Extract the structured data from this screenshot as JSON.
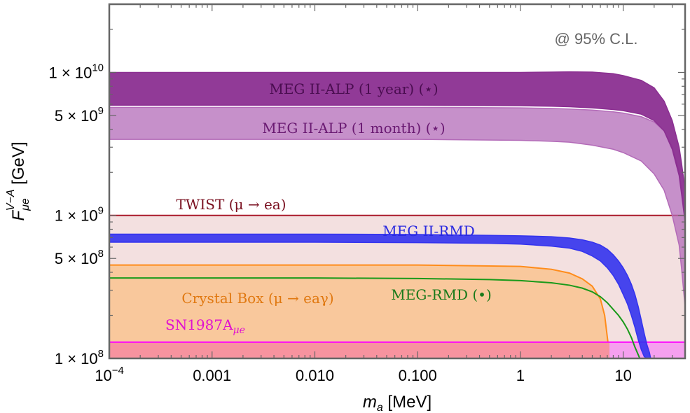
{
  "chart_data": {
    "type": "area",
    "x_scale": "log",
    "y_scale": "log",
    "xlim": [
      0.0001,
      40
    ],
    "ylim": [
      100000000,
      30000000000
    ],
    "xlabel": "m_a [MeV]",
    "ylabel": "F_μe^(V−A) [GeV]",
    "x_ticks": [
      {
        "value": 0.0001,
        "label": "10^-4"
      },
      {
        "value": 0.001,
        "label": "0.001"
      },
      {
        "value": 0.01,
        "label": "0.010"
      },
      {
        "value": 0.1,
        "label": "0.100"
      },
      {
        "value": 1,
        "label": "1"
      },
      {
        "value": 10,
        "label": "10"
      }
    ],
    "y_ticks": [
      {
        "value": 10000000000,
        "label": "1 × 10^10"
      },
      {
        "value": 5000000000,
        "label": "5 × 10^9"
      },
      {
        "value": 1000000000,
        "label": "1 × 10^9"
      },
      {
        "value": 500000000,
        "label": "5 × 10^8"
      },
      {
        "value": 100000000,
        "label": "1 × 10^8"
      }
    ],
    "annotation": "@ 95% C.L.",
    "series": [
      {
        "name": "SN1987A_μe",
        "kind": "excluded_region",
        "color": "#ff00ff",
        "x": [
          0.0001,
          40
        ],
        "y": [
          130000000,
          130000000
        ]
      },
      {
        "name": "TWIST (μ → ea)",
        "kind": "excluded_region",
        "color": "#aa1a2a",
        "x": [
          0.0001,
          40
        ],
        "y": [
          1000000000,
          1000000000
        ]
      },
      {
        "name": "Crystal Box (μ → eaγ)",
        "kind": "excluded_region",
        "color": "#ff8c1a",
        "x": [
          0.0001,
          0.001,
          0.01,
          0.1,
          1,
          2,
          3,
          4,
          5,
          6,
          6.6,
          7.1,
          7.35
        ],
        "y": [
          450000000,
          450000000,
          450000000,
          450000000,
          440000000,
          420000000,
          395000000,
          360000000,
          320000000,
          260000000,
          200000000,
          130000000,
          100000000
        ]
      },
      {
        "name": "MEG-RMD (•)",
        "kind": "line",
        "color": "#1a9a1a",
        "x": [
          0.0001,
          0.001,
          0.01,
          0.1,
          0.5,
          1,
          2,
          3,
          4,
          5,
          6,
          7,
          8,
          9,
          10,
          11,
          12,
          13,
          14.5
        ],
        "y": [
          365000000,
          365000000,
          365000000,
          362000000,
          356000000,
          350000000,
          338000000,
          325000000,
          310000000,
          292000000,
          270000000,
          245000000,
          220000000,
          200000000,
          180000000,
          160000000,
          140000000,
          120000000,
          100000000
        ]
      },
      {
        "name": "MEG II-RMD",
        "kind": "band",
        "color": "#3333ee",
        "x": [
          0.0001,
          0.001,
          0.01,
          0.1,
          0.5,
          1,
          2,
          3,
          4,
          5,
          6,
          7,
          8,
          9,
          10,
          11,
          12,
          13,
          14,
          15,
          16,
          17,
          18,
          18.5
        ],
        "y_upper": [
          740000000,
          740000000,
          740000000,
          735000000,
          725000000,
          720000000,
          710000000,
          695000000,
          675000000,
          650000000,
          620000000,
          580000000,
          530000000,
          480000000,
          430000000,
          380000000,
          330000000,
          280000000,
          230000000,
          185000000,
          150000000,
          125000000,
          110000000,
          100000000
        ],
        "y_lower": [
          650000000,
          650000000,
          650000000,
          645000000,
          638000000,
          630000000,
          610000000,
          590000000,
          560000000,
          520000000,
          480000000,
          430000000,
          380000000,
          330000000,
          280000000,
          240000000,
          200000000,
          165000000,
          135000000,
          115000000,
          103000000,
          100000000,
          100000000,
          100000000
        ]
      },
      {
        "name": "MEG II-ALP (1 month) (⋆)",
        "kind": "band",
        "color": "#b36bb8",
        "x": [
          0.0001,
          0.001,
          0.01,
          0.1,
          1,
          2,
          3,
          5,
          8,
          10,
          15,
          20,
          25,
          30,
          35,
          37,
          40
        ],
        "y_upper": [
          5700000000,
          5700000000,
          5700000000,
          5700000000,
          5650000000,
          5600000000,
          5550000000,
          5450000000,
          5300000000,
          5200000000,
          4900000000,
          4500000000,
          3900000000,
          3000000000,
          2000000000,
          1500000000,
          1000000000
        ],
        "y_lower": [
          3400000000,
          3400000000,
          3400000000,
          3400000000,
          3350000000,
          3300000000,
          3250000000,
          3100000000,
          2900000000,
          2750000000,
          2400000000,
          1950000000,
          1500000000,
          1000000000,
          620000000,
          420000000,
          230000000
        ]
      },
      {
        "name": "MEG II-ALP (1 year) (⋆)",
        "kind": "band",
        "color": "#8b2f91",
        "x": [
          0.0001,
          0.001,
          0.01,
          0.1,
          1,
          2,
          3,
          5,
          8,
          10,
          15,
          20,
          25,
          30,
          35,
          37,
          40
        ],
        "y_upper": [
          10000000000,
          10000000000,
          10000000000,
          10000000000,
          10000000000,
          10050000000,
          10100000000,
          10050000000,
          9800000000,
          9500000000,
          8800000000,
          7800000000,
          6300000000,
          4600000000,
          3000000000,
          2300000000,
          1500000000
        ],
        "y_lower": [
          5900000000,
          5900000000,
          5900000000,
          5900000000,
          5850000000,
          5800000000,
          5750000000,
          5650000000,
          5500000000,
          5400000000,
          5100000000,
          4600000000,
          3900000000,
          2900000000,
          1900000000,
          1400000000,
          900000000
        ]
      }
    ],
    "labels": {
      "alp_year": "MEG II-ALP (1 year) (⋆)",
      "alp_month": "MEG II-ALP (1 month) (⋆)",
      "twist": "TWIST (μ → ea)",
      "meg2_rmd": "MEG II-RMD",
      "meg_rmd": "MEG-RMD (•)",
      "crystal": "Crystal Box (μ → eaγ)",
      "sn": "SN1987A",
      "sn_sub": "μe"
    },
    "colors": {
      "twist_fill": "#f3e0e0",
      "crystal_fill": "#f9c89c",
      "sn_fill": "#f7939f",
      "sn_fill_right": "#f5a0ef",
      "frame": "#666666"
    }
  }
}
